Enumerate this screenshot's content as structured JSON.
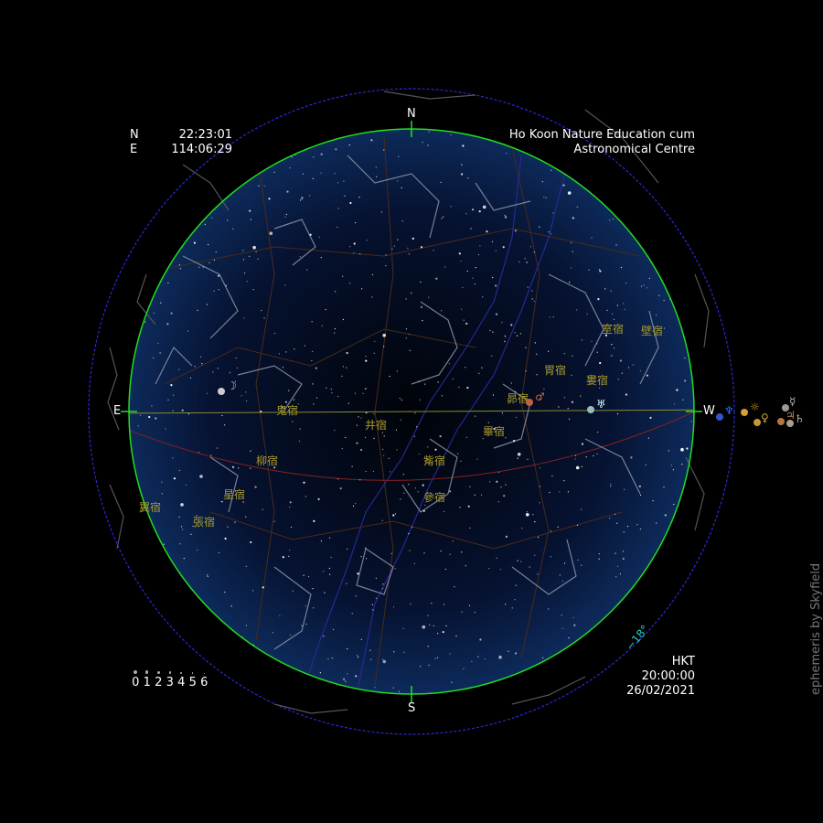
{
  "location": {
    "lat_label": "N",
    "lat_value": "22:23:01",
    "lon_label": "E",
    "lon_value": "114:06:29",
    "name_line1": "Ho Koon Nature Education cum",
    "name_line2": "Astronomical Centre"
  },
  "time": {
    "zone": "HKT",
    "clock": "20:00:00",
    "date": "26/02/2021"
  },
  "cardinals": {
    "north": "N",
    "south": "S",
    "east": "E",
    "west": "W"
  },
  "twilight_label": "−18°",
  "credit": "ephemeris by Skyfield",
  "magnitude_scale": [
    "0",
    "1",
    "2",
    "3",
    "4",
    "5",
    "6"
  ],
  "lunar_mansions": [
    "室宿",
    "壁宿",
    "胃宿",
    "婁宿",
    "昴宿",
    "畢宿",
    "鬼宿",
    "井宿",
    "柳宿",
    "觜宿",
    "參宿",
    "星宿",
    "翼宿",
    "張宿"
  ],
  "bodies": {
    "moon_symbol": "☽",
    "mars_symbol": "♂",
    "uranus_symbol": "♅",
    "neptune_symbol": "♆",
    "sun_symbol": "☼",
    "venus_symbol": "♀",
    "mercury_symbol": "☿",
    "jupiter_symbol": "♃",
    "saturn_symbol": "♄"
  },
  "colors": {
    "horizon": "#22dd22",
    "outer_circle": "#2a2ad8",
    "ecliptic": "#8a8a30",
    "galactic_equator": "#8a2020",
    "twilight_label": "#22cccc",
    "mansion_label": "#a89a2c"
  }
}
